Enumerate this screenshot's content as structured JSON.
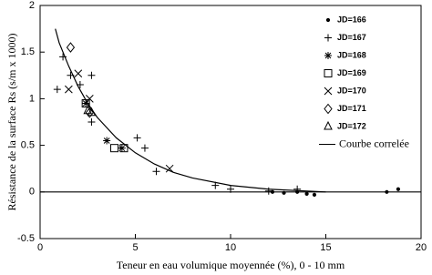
{
  "chart_data": {
    "type": "scatter",
    "xlabel": "Teneur en eau volumique moyennée (%), 0 - 10 mm",
    "ylabel": "Résistance de la surface Rs (s/m x 1000)",
    "xlim": [
      0,
      20
    ],
    "xticks": [
      0,
      5,
      10,
      15,
      20
    ],
    "ylim": [
      -0.5,
      2
    ],
    "yticks": [
      -0.5,
      0,
      0.5,
      1,
      1.5,
      2
    ],
    "zero_line": true,
    "legend": "upper right",
    "series": [
      {
        "name": "JD=166",
        "marker": "dot",
        "color": "#000000",
        "x": [
          12.2,
          12.8,
          13.5,
          14.0,
          14.4,
          18.2,
          18.8
        ],
        "values": [
          0.0,
          -0.01,
          0.0,
          -0.02,
          -0.03,
          0.0,
          0.03
        ]
      },
      {
        "name": "JD=167",
        "marker": "plus",
        "color": "#000000",
        "x": [
          0.9,
          1.2,
          1.6,
          2.1,
          2.7,
          2.7,
          5.1,
          5.5,
          6.1,
          9.2,
          10.0,
          12.0,
          13.5
        ],
        "values": [
          1.1,
          1.45,
          1.25,
          1.15,
          1.25,
          0.75,
          0.58,
          0.47,
          0.22,
          0.07,
          0.03,
          0.01,
          0.03
        ]
      },
      {
        "name": "JD=168",
        "marker": "asterisk",
        "color": "#000000",
        "x": [
          2.4,
          3.5,
          4.3
        ],
        "values": [
          0.95,
          0.55,
          0.47
        ]
      },
      {
        "name": "JD=169",
        "marker": "square",
        "color": "#000000",
        "x": [
          2.4,
          3.9,
          4.4
        ],
        "values": [
          0.95,
          0.47,
          0.47
        ]
      },
      {
        "name": "JD=170",
        "marker": "x",
        "color": "#000000",
        "x": [
          1.5,
          2.0,
          2.6,
          6.8
        ],
        "values": [
          1.1,
          1.27,
          1.0,
          0.25
        ]
      },
      {
        "name": "JD=171",
        "marker": "diamond",
        "color": "#000000",
        "x": [
          1.6,
          2.6
        ],
        "values": [
          1.55,
          0.85
        ]
      },
      {
        "name": "JD=172",
        "marker": "triangle",
        "color": "#000000",
        "x": [
          2.5,
          2.7
        ],
        "values": [
          0.87,
          0.85
        ]
      },
      {
        "name": "Courbe correlée",
        "marker": "line",
        "color": "#000000",
        "x": [
          0.8,
          1,
          1.5,
          2,
          2.5,
          3,
          4,
          5,
          6,
          7,
          8,
          10,
          12,
          15
        ],
        "values": [
          1.75,
          1.6,
          1.35,
          1.13,
          0.95,
          0.8,
          0.58,
          0.42,
          0.3,
          0.21,
          0.15,
          0.07,
          0.03,
          0.0
        ]
      }
    ]
  }
}
